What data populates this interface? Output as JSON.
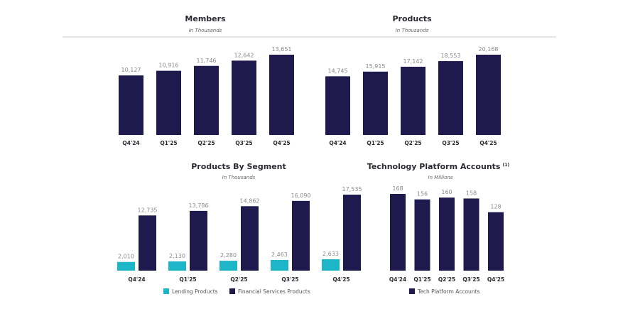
{
  "colors": {
    "primary": "#1e1a4d",
    "secondary": "#1fb5c9"
  },
  "chart_data": [
    {
      "type": "bar",
      "title": "Members",
      "subtitle": "In Thousands",
      "categories": [
        "Q4'24",
        "Q1'25",
        "Q2'25",
        "Q3'25",
        "Q4'25"
      ],
      "values": [
        10127,
        10916,
        11746,
        12642,
        13651
      ],
      "labels": [
        "10,127",
        "10,916",
        "11,746",
        "12,642",
        "13,651"
      ]
    },
    {
      "type": "bar",
      "title": "Products",
      "subtitle": "In Thousands",
      "categories": [
        "Q4'24",
        "Q1'25",
        "Q2'25",
        "Q3'25",
        "Q4'25"
      ],
      "values": [
        14745,
        15915,
        17142,
        18553,
        20168
      ],
      "labels": [
        "14,745",
        "15,915",
        "17,142",
        "18,553",
        "20,168"
      ]
    },
    {
      "type": "bar",
      "title": "Products By Segment",
      "subtitle": "In Thousands",
      "categories": [
        "Q4'24",
        "Q1'25",
        "Q2'25",
        "Q3'25",
        "Q4'25"
      ],
      "series": [
        {
          "name": "Lending Products",
          "values": [
            2010,
            2130,
            2280,
            2463,
            2633
          ],
          "labels": [
            "2,010",
            "2,130",
            "2,280",
            "2,463",
            "2,633"
          ]
        },
        {
          "name": "Financial Services Products",
          "values": [
            12735,
            13786,
            14862,
            16090,
            17535
          ],
          "labels": [
            "12,735",
            "13,786",
            "14,862",
            "16,090",
            "17,535"
          ]
        }
      ],
      "legend": "bottom"
    },
    {
      "type": "bar",
      "title": "Technology Platform Accounts",
      "title_note": "(1)",
      "subtitle": "In Millions",
      "categories": [
        "Q4'24",
        "Q1'25",
        "Q2'25",
        "Q3'25",
        "Q4'25"
      ],
      "series": [
        {
          "name": "Tech Platform Accounts",
          "values": [
            168,
            156,
            160,
            158,
            128
          ],
          "labels": [
            "168",
            "156",
            "160",
            "158",
            "128"
          ]
        }
      ],
      "legend": "bottom"
    }
  ]
}
